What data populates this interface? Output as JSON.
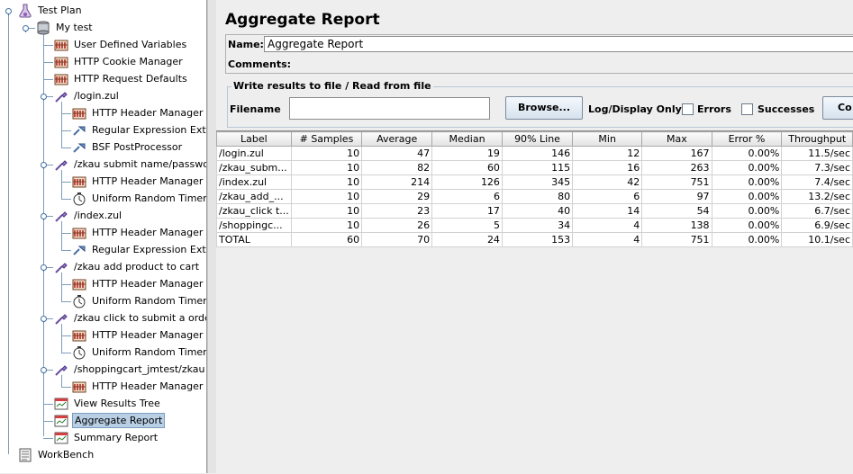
{
  "tree": {
    "items": [
      {
        "label": "Test Plan",
        "icon": "flask-icon",
        "level": 0
      },
      {
        "label": "My test",
        "icon": "thread-group-icon",
        "level": 1
      },
      {
        "label": "User Defined Variables",
        "icon": "config-element-icon",
        "level": 2
      },
      {
        "label": "HTTP Cookie Manager",
        "icon": "config-element-icon",
        "level": 2
      },
      {
        "label": "HTTP Request Defaults",
        "icon": "config-element-icon",
        "level": 2
      },
      {
        "label": "/login.zul",
        "icon": "sampler-pipette-icon",
        "level": 2
      },
      {
        "label": "HTTP Header Manager",
        "icon": "config-element-icon",
        "level": 3
      },
      {
        "label": "Regular Expression Extrac",
        "icon": "post-processor-icon",
        "level": 3
      },
      {
        "label": "BSF PostProcessor",
        "icon": "post-processor-icon",
        "level": 3
      },
      {
        "label": "/zkau  submit  name/passwor",
        "icon": "sampler-pipette-icon",
        "level": 2
      },
      {
        "label": "HTTP Header Manager",
        "icon": "config-element-icon",
        "level": 3
      },
      {
        "label": "Uniform Random Timer",
        "icon": "timer-icon",
        "level": 3
      },
      {
        "label": "/index.zul",
        "icon": "sampler-pipette-icon",
        "level": 2
      },
      {
        "label": "HTTP Header Manager",
        "icon": "config-element-icon",
        "level": 3
      },
      {
        "label": "Regular Expression Extrac",
        "icon": "post-processor-icon",
        "level": 3
      },
      {
        "label": "/zkau  add  product  to cart",
        "icon": "sampler-pipette-icon",
        "level": 2
      },
      {
        "label": "HTTP Header Manager",
        "icon": "config-element-icon",
        "level": 3
      },
      {
        "label": "Uniform Random Timer",
        "icon": "timer-icon",
        "level": 3
      },
      {
        "label": "/zkau  click to submit a order",
        "icon": "sampler-pipette-icon",
        "level": 2
      },
      {
        "label": "HTTP Header Manager",
        "icon": "config-element-icon",
        "level": 3
      },
      {
        "label": "Uniform Random Timer",
        "icon": "timer-icon",
        "level": 3
      },
      {
        "label": "/shoppingcart_jmtest/zkau",
        "icon": "sampler-pipette-icon",
        "level": 2
      },
      {
        "label": "HTTP Header Manager",
        "icon": "config-element-icon",
        "level": 3
      },
      {
        "label": "View Results Tree",
        "icon": "listener-icon",
        "level": 2
      },
      {
        "label": "Aggregate Report",
        "icon": "listener-icon",
        "level": 2,
        "selected": true
      },
      {
        "label": "Summary Report",
        "icon": "listener-icon",
        "level": 2
      },
      {
        "label": "WorkBench",
        "icon": "workbench-icon",
        "level": 0
      }
    ]
  },
  "panel": {
    "title": "Aggregate Report",
    "name_label": "Name:",
    "name_value": "Aggregate Report",
    "comments_label": "Comments:",
    "file_legend": "Write results to file / Read from file",
    "filename_label": "Filename",
    "filename_value": "",
    "browse_label": "Browse...",
    "log_display_label": "Log/Display Only:",
    "errors_label": "Errors",
    "successes_label": "Successes",
    "configure_label": "Co"
  },
  "table": {
    "columns": [
      "Label",
      "# Samples",
      "Average",
      "Median",
      "90% Line",
      "Min",
      "Max",
      "Error %",
      "Throughput"
    ],
    "rows": [
      [
        "/login.zul",
        "10",
        "47",
        "19",
        "146",
        "12",
        "167",
        "0.00%",
        "11.5/sec"
      ],
      [
        "/zkau_subm...",
        "10",
        "82",
        "60",
        "115",
        "16",
        "263",
        "0.00%",
        "7.3/sec"
      ],
      [
        "/index.zul",
        "10",
        "214",
        "126",
        "345",
        "42",
        "751",
        "0.00%",
        "7.4/sec"
      ],
      [
        "/zkau_add_...",
        "10",
        "29",
        "6",
        "80",
        "6",
        "97",
        "0.00%",
        "13.2/sec"
      ],
      [
        "/zkau_click t...",
        "10",
        "23",
        "17",
        "40",
        "14",
        "54",
        "0.00%",
        "6.7/sec"
      ],
      [
        "/shoppingc...",
        "10",
        "26",
        "5",
        "34",
        "4",
        "138",
        "0.00%",
        "6.9/sec"
      ],
      [
        "TOTAL",
        "60",
        "70",
        "24",
        "153",
        "4",
        "751",
        "0.00%",
        "10.1/sec"
      ]
    ]
  },
  "colors": {
    "selection": "#b8cfe5",
    "tree_line": "#7e9cbb",
    "panel_bg": "#eeeeee"
  }
}
